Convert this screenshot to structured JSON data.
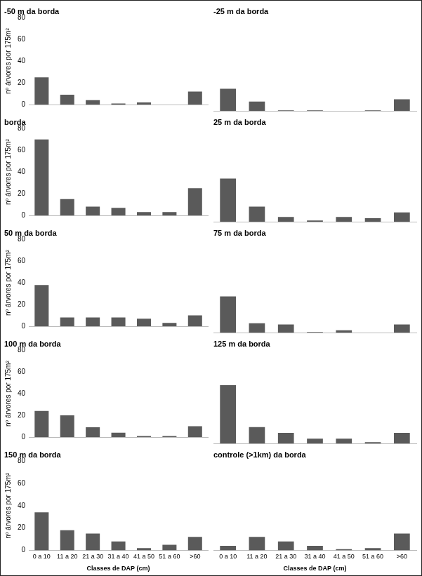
{
  "chart_data": [
    {
      "type": "bar",
      "title": "-50 m da borda",
      "ylabel": "nº árvores por 175m²",
      "categories": [
        "0 a 10",
        "11 a 20",
        "21 a 30",
        "31 a 40",
        "41 a 50",
        "51 a 60",
        ">60"
      ],
      "values": [
        25,
        9,
        4,
        1,
        2,
        0,
        12
      ],
      "color": "#5a5a5a",
      "ylim": [
        0,
        80
      ],
      "yticks": [
        0,
        20,
        40,
        60,
        80
      ],
      "grid": false,
      "tick_labels": "y"
    },
    {
      "type": "bar",
      "title": "-25 m da borda",
      "categories": [
        "0 a 10",
        "11 a 20",
        "21 a 30",
        "31 a 40",
        "41 a 50",
        "51 a 60",
        ">60"
      ],
      "values": [
        19,
        8,
        0.5,
        0.5,
        0,
        0.5,
        10
      ],
      "color": "#5a5a5a",
      "ylim": [
        0,
        80
      ],
      "yticks": [
        0,
        20,
        40,
        60,
        80
      ],
      "grid": false,
      "tick_labels": false
    },
    {
      "type": "bar",
      "title": "borda",
      "ylabel": "nº árvores por 175m²",
      "categories": [
        "0 a 10",
        "11 a 20",
        "21 a 30",
        "31 a 40",
        "41 a 50",
        "51 a 60",
        ">60"
      ],
      "values": [
        70,
        15,
        8,
        7,
        3,
        3,
        25
      ],
      "color": "#5a5a5a",
      "ylim": [
        0,
        80
      ],
      "yticks": [
        0,
        20,
        40,
        60,
        80
      ],
      "grid": false,
      "tick_labels": "y"
    },
    {
      "type": "bar",
      "title": "25 m da borda",
      "categories": [
        "0 a 10",
        "11 a 20",
        "21 a 30",
        "31 a 40",
        "41 a 50",
        "51 a 60",
        ">60"
      ],
      "values": [
        37,
        13,
        4,
        1,
        4,
        3,
        8
      ],
      "color": "#5a5a5a",
      "ylim": [
        0,
        80
      ],
      "yticks": [
        0,
        20,
        40,
        60,
        80
      ],
      "grid": false,
      "tick_labels": false
    },
    {
      "type": "bar",
      "title": "50 m da borda",
      "ylabel": "nº árvores por 175m²",
      "categories": [
        "0 a 10",
        "11 a 20",
        "21 a 30",
        "31 a 40",
        "41 a 50",
        "51 a 60",
        ">60"
      ],
      "values": [
        38,
        8,
        8,
        8,
        7,
        3,
        10
      ],
      "color": "#5a5a5a",
      "ylim": [
        0,
        80
      ],
      "yticks": [
        0,
        20,
        40,
        60,
        80
      ],
      "grid": false,
      "tick_labels": "y"
    },
    {
      "type": "bar",
      "title": "75 m da borda",
      "categories": [
        "0 a 10",
        "11 a 20",
        "21 a 30",
        "31 a 40",
        "41 a 50",
        "51 a 60",
        ">60"
      ],
      "values": [
        31,
        8,
        7,
        0.5,
        2,
        0,
        7
      ],
      "color": "#5a5a5a",
      "ylim": [
        0,
        80
      ],
      "yticks": [
        0,
        20,
        40,
        60,
        80
      ],
      "grid": false,
      "tick_labels": false
    },
    {
      "type": "bar",
      "title": "100 m da borda",
      "ylabel": "nº árvores por 175m²",
      "categories": [
        "0 a 10",
        "11 a 20",
        "21 a 30",
        "31 a 40",
        "41 a 50",
        "51 a 60",
        ">60"
      ],
      "values": [
        24,
        20,
        9,
        4,
        1,
        1,
        10
      ],
      "color": "#5a5a5a",
      "ylim": [
        0,
        80
      ],
      "yticks": [
        0,
        20,
        40,
        60,
        80
      ],
      "grid": false,
      "tick_labels": "y"
    },
    {
      "type": "bar",
      "title": "125 m da borda",
      "categories": [
        "0 a 10",
        "11 a 20",
        "21 a 30",
        "31 a 40",
        "41 a 50",
        "51 a 60",
        ">60"
      ],
      "values": [
        50,
        14,
        9,
        4,
        4,
        1,
        9
      ],
      "color": "#5a5a5a",
      "ylim": [
        0,
        80
      ],
      "yticks": [
        0,
        20,
        40,
        60,
        80
      ],
      "grid": false,
      "tick_labels": false
    },
    {
      "type": "bar",
      "title": "150 m da borda",
      "ylabel": "nº árvores por 175m²",
      "xlabel": "Classes de DAP (cm)",
      "categories": [
        "0 a 10",
        "11 a 20",
        "21 a 30",
        "31 a 40",
        "41 a 50",
        "51 a 60",
        ">60"
      ],
      "values": [
        34,
        18,
        15,
        8,
        2,
        5,
        12
      ],
      "color": "#5a5a5a",
      "ylim": [
        0,
        80
      ],
      "yticks": [
        0,
        20,
        40,
        60,
        80
      ],
      "grid": false,
      "tick_labels": true
    },
    {
      "type": "bar",
      "title": "controle (>1km) da borda",
      "xlabel": "Classes de DAP (cm)",
      "categories": [
        "0 a 10",
        "11 a 20",
        "21 a 30",
        "31 a 40",
        "41 a 50",
        "51 a 60",
        ">60"
      ],
      "values": [
        4,
        12,
        8,
        4,
        1,
        2,
        15
      ],
      "color": "#5a5a5a",
      "ylim": [
        0,
        80
      ],
      "yticks": [
        0,
        20,
        40,
        60,
        80
      ],
      "grid": false,
      "tick_labels": "x"
    }
  ]
}
